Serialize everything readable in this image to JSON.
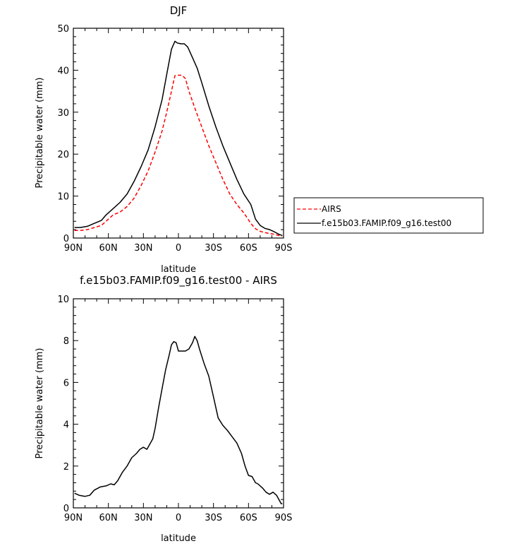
{
  "chart_data": [
    {
      "type": "line",
      "title": "DJF",
      "xlabel": "latitude",
      "ylabel": "Precipitable water (mm)",
      "xlim": [
        -90,
        90
      ],
      "ylim": [
        0,
        50
      ],
      "x_ticks": [
        -90,
        -60,
        -30,
        0,
        30,
        60,
        90
      ],
      "x_tick_labels": [
        "90N",
        "60N",
        "30N",
        "0",
        "30S",
        "60S",
        "90S"
      ],
      "y_ticks": [
        0,
        10,
        20,
        30,
        40,
        50
      ],
      "y_tick_labels": [
        "0",
        "10",
        "20",
        "30",
        "40",
        "50"
      ],
      "legend_position": "right",
      "series": [
        {
          "name": "AIRS",
          "color": "#ff0000",
          "dash": true,
          "x": [
            -89,
            -84,
            -78,
            -72,
            -66,
            -62,
            -56,
            -50,
            -44,
            -38,
            -32,
            -26,
            -20,
            -14,
            -10,
            -6,
            -3,
            0,
            3,
            6,
            9,
            14,
            20,
            26,
            32,
            38,
            44,
            50,
            56,
            62,
            66,
            70,
            74,
            78,
            82,
            86,
            89
          ],
          "y": [
            1.8,
            1.8,
            2.0,
            2.5,
            3.0,
            4.0,
            5.5,
            6.2,
            7.5,
            9.5,
            12.5,
            16.0,
            20.5,
            25.5,
            30.0,
            35.0,
            38.7,
            38.8,
            38.8,
            38.0,
            35.0,
            31.0,
            26.5,
            22.0,
            18.0,
            14.0,
            10.5,
            8.0,
            6.0,
            3.5,
            2.2,
            1.6,
            1.3,
            1.1,
            0.9,
            0.6,
            0.5
          ]
        },
        {
          "name": "f.e15b03.FAMIP.f09_g16.test00",
          "color": "#000000",
          "dash": false,
          "x": [
            -89,
            -84,
            -78,
            -72,
            -66,
            -62,
            -56,
            -50,
            -44,
            -38,
            -32,
            -26,
            -20,
            -14,
            -10,
            -6,
            -3,
            -1,
            2,
            5,
            8,
            12,
            16,
            20,
            26,
            32,
            38,
            44,
            50,
            56,
            62,
            66,
            70,
            74,
            78,
            82,
            86,
            89
          ],
          "y": [
            2.5,
            2.5,
            2.8,
            3.5,
            4.2,
            5.5,
            7.0,
            8.5,
            10.5,
            13.5,
            17.0,
            21.0,
            26.5,
            33.0,
            39.0,
            45.0,
            46.9,
            46.5,
            46.3,
            46.3,
            45.5,
            43.0,
            40.5,
            37.0,
            31.5,
            26.5,
            22.0,
            18.0,
            14.0,
            10.5,
            8.0,
            4.5,
            3.0,
            2.3,
            2.0,
            1.5,
            0.9,
            0.6
          ]
        }
      ]
    },
    {
      "type": "line",
      "title": "f.e15b03.FAMIP.f09_g16.test00 - AIRS",
      "xlabel": "latitude",
      "ylabel": "Precipitable water (mm)",
      "xlim": [
        -90,
        90
      ],
      "ylim": [
        0,
        10
      ],
      "x_ticks": [
        -90,
        -60,
        -30,
        0,
        30,
        60,
        90
      ],
      "x_tick_labels": [
        "90N",
        "60N",
        "30N",
        "0",
        "30S",
        "60S",
        "90S"
      ],
      "y_ticks": [
        0,
        2,
        4,
        6,
        8,
        10
      ],
      "y_tick_labels": [
        "0",
        "2",
        "4",
        "6",
        "8",
        "10"
      ],
      "series": [
        {
          "color": "#000000",
          "dash": false,
          "x": [
            -89,
            -85,
            -80,
            -76,
            -72,
            -67,
            -62,
            -58,
            -55,
            -52,
            -48,
            -44,
            -40,
            -36,
            -33,
            -30,
            -27,
            -24,
            -22,
            -20,
            -17,
            -14,
            -11,
            -8,
            -6,
            -4,
            -2,
            0,
            3,
            6,
            9,
            12,
            14,
            16,
            18,
            22,
            26,
            30,
            34,
            38,
            42,
            46,
            50,
            54,
            57,
            60,
            63,
            66,
            68,
            72,
            75,
            78,
            81,
            84,
            88,
            89
          ],
          "y": [
            0.7,
            0.6,
            0.55,
            0.6,
            0.85,
            1.0,
            1.05,
            1.15,
            1.1,
            1.3,
            1.7,
            2.0,
            2.4,
            2.6,
            2.8,
            2.9,
            2.8,
            3.1,
            3.3,
            3.8,
            4.8,
            5.7,
            6.6,
            7.3,
            7.8,
            7.95,
            7.9,
            7.5,
            7.5,
            7.5,
            7.6,
            7.9,
            8.2,
            8.0,
            7.6,
            6.9,
            6.3,
            5.3,
            4.3,
            3.95,
            3.7,
            3.4,
            3.1,
            2.6,
            2.0,
            1.55,
            1.5,
            1.2,
            1.15,
            0.95,
            0.75,
            0.65,
            0.75,
            0.6,
            0.2,
            0.2
          ]
        }
      ]
    }
  ]
}
